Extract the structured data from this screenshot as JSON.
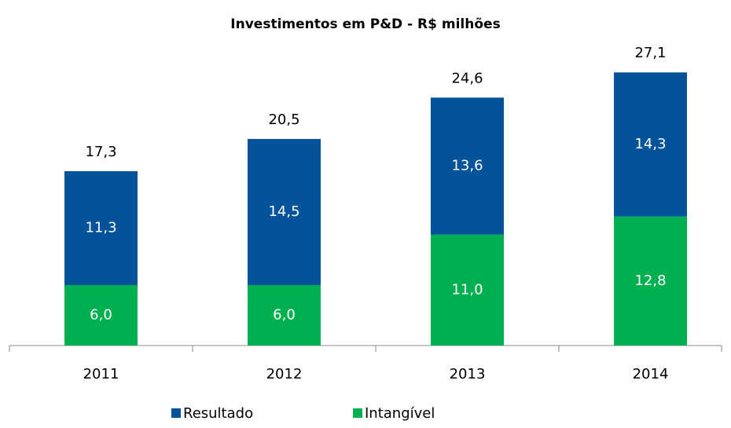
{
  "chart_data": {
    "type": "stacked_bar",
    "title": "Investimentos em P&D - R$ milhões",
    "categories": [
      "2011",
      "2012",
      "2013",
      "2014"
    ],
    "series": [
      {
        "name": "Intangível",
        "color": "#00b050",
        "values": [
          6.0,
          6.0,
          11.0,
          12.8
        ],
        "value_labels": [
          "6,0",
          "6,0",
          "11,0",
          "12,8"
        ]
      },
      {
        "name": "Resultado",
        "color": "#02539a",
        "values": [
          11.3,
          14.5,
          13.6,
          14.3
        ],
        "value_labels": [
          "11,3",
          "14,5",
          "13,6",
          "14,3"
        ]
      }
    ],
    "totals": [
      17.3,
      20.5,
      24.6,
      27.1
    ],
    "total_labels": [
      "17,3",
      "20,5",
      "24,6",
      "27,1"
    ],
    "ylim": [
      0,
      30
    ],
    "legend": "bottom"
  }
}
